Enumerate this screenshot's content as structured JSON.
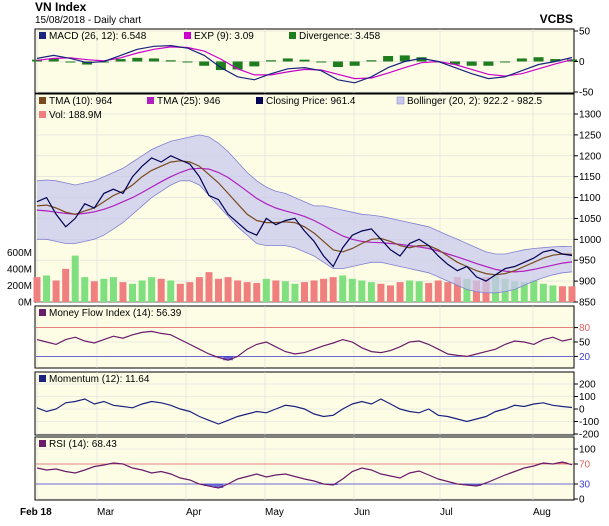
{
  "header": {
    "title": "VN Index",
    "subtitle": "15/08/2018 - Daily chart",
    "brand": "VCBS"
  },
  "colors": {
    "panel_bg": "#fdfde6",
    "frame": "#000000",
    "grid": "#dcdcdc",
    "macd": "#1a237e",
    "exp": "#cc00cc",
    "divergence": "#1e7d1e",
    "tma10": "#7a4a1e",
    "tma25": "#b020c0",
    "close": "#000055",
    "bollinger_fill": "#c8c8ee",
    "bollinger_line": "#8080d0",
    "vol_red": "#f08080",
    "vol_green": "#80e080",
    "mfi": "#6a1b6a",
    "mfi_fill": "#3030c8",
    "momentum": "#1a237e",
    "rsi": "#6a1b6a",
    "rsi_overbought": "#e06060",
    "rsi_oversold": "#4040d0",
    "level_red": "#e06060",
    "level_blue": "#4040d0"
  },
  "legend": {
    "macd": "MACD (26, 12): 6.548",
    "exp": "EXP (9): 3.09",
    "divergence": "Divergence: 3.458",
    "tma10": "TMA (10): 964",
    "tma25": "TMA (25): 946",
    "close": "Closing Price: 961.4",
    "bollinger": "Bollinger (20, 2): 922.2 - 982.5",
    "vol": "Vol: 188.9M",
    "mfi": "Money Flow Index (14): 56.39",
    "momentum": "Momentum (12): 11.64",
    "rsi": "RSI (14): 68.43"
  },
  "chart_data": [
    {
      "type": "line",
      "panel": "macd",
      "x_ticks": [
        "Feb 18",
        "Mar",
        "Apr",
        "May",
        "Jun",
        "Jul",
        "Aug"
      ],
      "ylim": [
        -50,
        50
      ],
      "y_ticks": [
        "50",
        "0",
        "-50"
      ],
      "series": [
        {
          "name": "MACD (26, 12)",
          "last": 6.548,
          "values": [
            5,
            10,
            5,
            -2,
            0,
            10,
            20,
            25,
            26,
            22,
            10,
            -10,
            -25,
            -30,
            -20,
            -12,
            -10,
            -15,
            -30,
            -35,
            -25,
            -10,
            0,
            5,
            0,
            -10,
            -20,
            -28,
            -25,
            -15,
            -5,
            0,
            6.548
          ]
        },
        {
          "name": "EXP (9)",
          "last": 3.09,
          "values": [
            2,
            5,
            6,
            3,
            1,
            6,
            14,
            20,
            24,
            23,
            17,
            4,
            -12,
            -22,
            -22,
            -17,
            -13,
            -14,
            -21,
            -28,
            -27,
            -19,
            -10,
            -2,
            0,
            -5,
            -13,
            -21,
            -24,
            -20,
            -12,
            -4,
            3.09
          ]
        },
        {
          "name": "Divergence",
          "last": 3.458,
          "type": "bar",
          "values": [
            3,
            5,
            -1,
            -5,
            -1,
            4,
            6,
            5,
            2,
            -1,
            -7,
            -14,
            -13,
            -8,
            2,
            5,
            3,
            -1,
            -9,
            -7,
            2,
            9,
            10,
            7,
            0,
            -5,
            -7,
            -7,
            -1,
            5,
            7,
            4,
            3.458
          ]
        }
      ]
    },
    {
      "type": "line",
      "panel": "price",
      "ylim": [
        850,
        1300
      ],
      "y_ticks": [
        "1300",
        "1250",
        "1200",
        "1150",
        "1100",
        "1050",
        "1000",
        "950",
        "900",
        "850"
      ],
      "vol_ticks": [
        "600M",
        "400M",
        "200M",
        "0M"
      ],
      "series": [
        {
          "name": "Closing Price",
          "last": 961.4,
          "values": [
            1090,
            1100,
            1060,
            1030,
            1050,
            1085,
            1075,
            1110,
            1120,
            1110,
            1150,
            1175,
            1195,
            1185,
            1200,
            1190,
            1180,
            1150,
            1105,
            1095,
            1060,
            1040,
            1020,
            1010,
            1050,
            1035,
            1045,
            1050,
            1020,
            995,
            960,
            935,
            980,
            1010,
            1020,
            1025,
            1000,
            975,
            960,
            990,
            1000,
            985,
            960,
            940,
            925,
            935,
            910,
            900,
            915,
            930,
            935,
            945,
            955,
            970,
            975,
            965,
            961.4
          ]
        },
        {
          "name": "TMA (10)",
          "last": 964,
          "values": [
            1080,
            1082,
            1075,
            1065,
            1060,
            1068,
            1075,
            1090,
            1105,
            1115,
            1130,
            1150,
            1165,
            1175,
            1185,
            1188,
            1185,
            1175,
            1155,
            1135,
            1110,
            1085,
            1060,
            1045,
            1040,
            1040,
            1042,
            1040,
            1030,
            1015,
            995,
            975,
            970,
            978,
            990,
            1000,
            1002,
            995,
            985,
            980,
            985,
            985,
            975,
            960,
            945,
            935,
            925,
            918,
            915,
            918,
            925,
            935,
            945,
            955,
            962,
            965,
            964
          ]
        },
        {
          "name": "TMA (25)",
          "last": 946,
          "values": [
            1070,
            1068,
            1065,
            1062,
            1060,
            1062,
            1066,
            1072,
            1080,
            1090,
            1100,
            1112,
            1125,
            1138,
            1150,
            1160,
            1168,
            1170,
            1168,
            1160,
            1148,
            1132,
            1115,
            1098,
            1085,
            1075,
            1068,
            1062,
            1055,
            1045,
            1033,
            1020,
            1008,
            1000,
            995,
            993,
            992,
            990,
            988,
            985,
            982,
            978,
            972,
            965,
            958,
            950,
            942,
            935,
            928,
            924,
            922,
            924,
            928,
            933,
            938,
            943,
            946
          ]
        },
        {
          "name": "Bollinger upper",
          "last": 982.5,
          "values": [
            1140,
            1142,
            1140,
            1135,
            1130,
            1135,
            1140,
            1150,
            1160,
            1170,
            1185,
            1200,
            1215,
            1225,
            1235,
            1240,
            1245,
            1250,
            1245,
            1230,
            1210,
            1185,
            1160,
            1140,
            1125,
            1115,
            1110,
            1100,
            1090,
            1080,
            1080,
            1075,
            1070,
            1065,
            1060,
            1058,
            1055,
            1050,
            1045,
            1040,
            1035,
            1030,
            1020,
            1010,
            1000,
            990,
            980,
            970,
            965,
            965,
            970,
            975,
            978,
            980,
            982,
            983,
            982.5
          ]
        },
        {
          "name": "Bollinger lower",
          "last": 922.2,
          "values": [
            1000,
            1000,
            995,
            990,
            990,
            995,
            1000,
            1010,
            1025,
            1040,
            1060,
            1080,
            1100,
            1115,
            1130,
            1140,
            1140,
            1130,
            1105,
            1080,
            1055,
            1030,
            1010,
            990,
            985,
            985,
            985,
            980,
            970,
            960,
            945,
            930,
            930,
            935,
            940,
            945,
            945,
            940,
            935,
            930,
            925,
            920,
            910,
            900,
            890,
            880,
            875,
            872,
            872,
            875,
            880,
            890,
            900,
            908,
            915,
            920,
            922.2
          ]
        }
      ],
      "volume": {
        "name": "Vol",
        "last": 188.9,
        "values": [
          300,
          320,
          260,
          400,
          560,
          300,
          250,
          280,
          300,
          240,
          220,
          260,
          300,
          280,
          260,
          220,
          240,
          300,
          360,
          280,
          300,
          260,
          240,
          230,
          280,
          260,
          250,
          220,
          240,
          260,
          280,
          300,
          320,
          280,
          260,
          240,
          220,
          200,
          240,
          260,
          250,
          230,
          260,
          240,
          300,
          280,
          260,
          300,
          320,
          280,
          250,
          240,
          260,
          220,
          200,
          190,
          188.9
        ],
        "up": [
          0,
          1,
          0,
          0,
          1,
          1,
          0,
          1,
          1,
          0,
          1,
          1,
          1,
          0,
          1,
          0,
          0,
          0,
          0,
          0,
          0,
          0,
          0,
          0,
          1,
          0,
          1,
          1,
          0,
          0,
          0,
          0,
          1,
          1,
          1,
          1,
          0,
          0,
          0,
          1,
          1,
          0,
          0,
          0,
          0,
          1,
          0,
          0,
          1,
          1,
          1,
          1,
          1,
          1,
          1,
          0,
          0
        ]
      }
    },
    {
      "type": "line",
      "panel": "mfi",
      "ylim": [
        0,
        100
      ],
      "y_ticks": [
        "80",
        "50",
        "20"
      ],
      "series": [
        {
          "name": "Money Flow Index (14)",
          "last": 56.39,
          "values": [
            55,
            50,
            45,
            55,
            60,
            52,
            48,
            55,
            62,
            58,
            65,
            70,
            72,
            68,
            65,
            55,
            45,
            35,
            25,
            18,
            12,
            20,
            35,
            45,
            50,
            40,
            30,
            25,
            28,
            35,
            42,
            48,
            55,
            50,
            38,
            30,
            28,
            32,
            40,
            50,
            52,
            45,
            35,
            25,
            22,
            20,
            25,
            30,
            35,
            45,
            52,
            50,
            45,
            55,
            60,
            52,
            56.39
          ]
        }
      ]
    },
    {
      "type": "line",
      "panel": "momentum",
      "ylim": [
        -200,
        200
      ],
      "y_ticks": [
        "200",
        "100",
        "0",
        "-100",
        "-200"
      ],
      "series": [
        {
          "name": "Momentum (12)",
          "last": 11.64,
          "values": [
            10,
            -20,
            0,
            50,
            60,
            80,
            40,
            60,
            30,
            20,
            10,
            40,
            60,
            50,
            30,
            0,
            -20,
            -60,
            -90,
            -120,
            -90,
            -60,
            -40,
            -20,
            -30,
            0,
            30,
            20,
            0,
            -40,
            -60,
            -50,
            0,
            40,
            60,
            40,
            80,
            40,
            0,
            -20,
            -30,
            0,
            -50,
            -60,
            -80,
            -100,
            -80,
            -60,
            -20,
            0,
            30,
            20,
            40,
            50,
            30,
            20,
            11.64
          ]
        }
      ]
    },
    {
      "type": "line",
      "panel": "rsi",
      "ylim": [
        0,
        100
      ],
      "y_ticks": [
        "100",
        "70",
        "30",
        "0"
      ],
      "series": [
        {
          "name": "RSI (14)",
          "last": 68.43,
          "values": [
            62,
            58,
            60,
            55,
            52,
            58,
            65,
            68,
            72,
            70,
            62,
            58,
            52,
            55,
            50,
            42,
            38,
            30,
            26,
            22,
            30,
            40,
            45,
            50,
            44,
            48,
            50,
            45,
            40,
            36,
            30,
            28,
            40,
            55,
            62,
            58,
            50,
            46,
            42,
            52,
            56,
            48,
            40,
            35,
            30,
            28,
            26,
            32,
            40,
            48,
            55,
            62,
            66,
            72,
            70,
            74,
            68.43
          ]
        }
      ]
    }
  ]
}
